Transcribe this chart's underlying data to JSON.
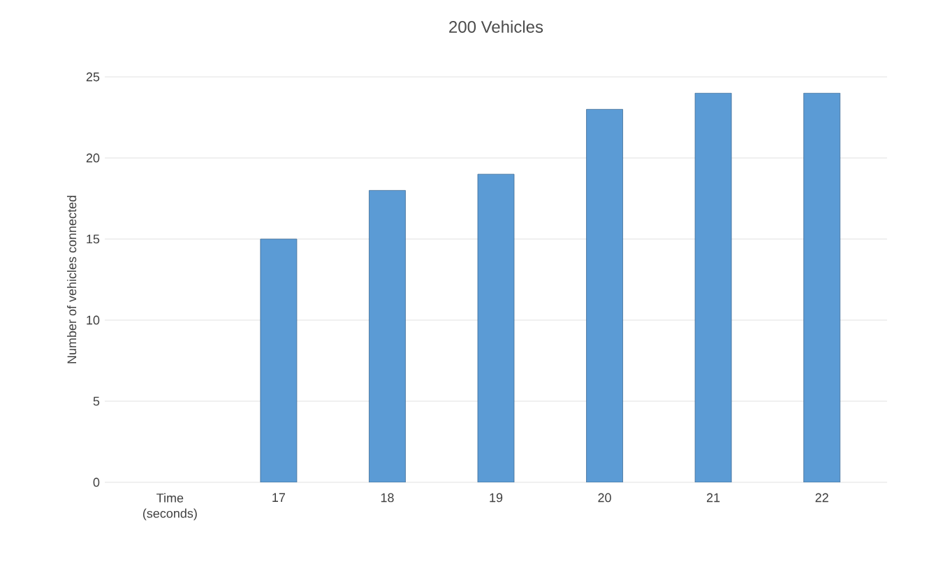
{
  "chart_data": {
    "type": "bar",
    "title": "200 Vehicles",
    "ylabel": "Number of vehicles connected",
    "categories": [
      "Time (seconds)",
      "17",
      "18",
      "19",
      "20",
      "21",
      "22"
    ],
    "values": [
      null,
      15,
      18,
      19,
      23,
      24,
      24
    ],
    "color": "#5b9bd5",
    "ylim": [
      0,
      25
    ],
    "yticks": [
      0,
      5,
      10,
      15,
      20,
      25
    ],
    "grid": "y"
  }
}
